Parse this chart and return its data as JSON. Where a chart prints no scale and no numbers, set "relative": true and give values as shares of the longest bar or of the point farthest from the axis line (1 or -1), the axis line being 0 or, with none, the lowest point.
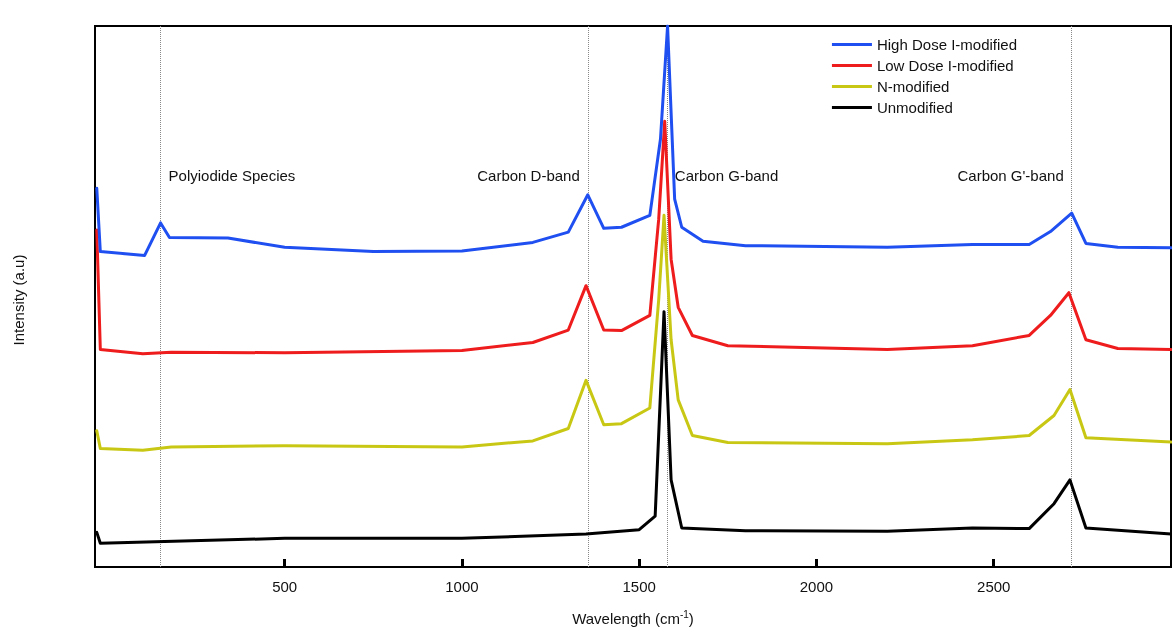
{
  "chart_data": {
    "type": "line",
    "relative": true,
    "xlabel": "Wavelength (cm$^{-1}$)",
    "ylabel": "Intensity (a.u)",
    "xlim": [
      -35,
      3000
    ],
    "xticks": [
      500,
      1000,
      1500,
      2000,
      2500
    ],
    "legend": "top right",
    "marker": "none",
    "line_style": "solid",
    "grid": false,
    "series": [
      {
        "name": "High Dose I-modified",
        "color": "#1f4ff0",
        "x": [
          -30,
          -20,
          105,
          150,
          175,
          340,
          500,
          750,
          1000,
          1200,
          1300,
          1355,
          1400,
          1450,
          1530,
          1560,
          1580,
          1600,
          1620,
          1680,
          1800,
          2200,
          2440,
          2600,
          2660,
          2720,
          2760,
          2850,
          3000
        ],
        "values": [
          0.7,
          0.583,
          0.576,
          0.636,
          0.609,
          0.608,
          0.591,
          0.583,
          0.584,
          0.6,
          0.619,
          0.688,
          0.626,
          0.628,
          0.65,
          0.791,
          1.0,
          0.68,
          0.628,
          0.602,
          0.594,
          0.591,
          0.596,
          0.596,
          0.62,
          0.654,
          0.598,
          0.591,
          0.59
        ]
      },
      {
        "name": "Low Dose I-modified",
        "color": "#ee1c1c",
        "x": [
          -30,
          -20,
          100,
          180,
          500,
          1000,
          1200,
          1300,
          1350,
          1400,
          1450,
          1530,
          1555,
          1572,
          1590,
          1610,
          1650,
          1750,
          2200,
          2440,
          2600,
          2660,
          2712,
          2760,
          2850,
          3000
        ],
        "values": [
          0.623,
          0.402,
          0.394,
          0.397,
          0.396,
          0.4,
          0.415,
          0.438,
          0.52,
          0.438,
          0.437,
          0.465,
          0.643,
          0.824,
          0.569,
          0.48,
          0.428,
          0.409,
          0.402,
          0.409,
          0.428,
          0.465,
          0.507,
          0.42,
          0.404,
          0.402
        ]
      },
      {
        "name": "N-modified",
        "color": "#c8c814",
        "x": [
          -30,
          -20,
          100,
          180,
          500,
          1000,
          1200,
          1300,
          1350,
          1400,
          1450,
          1530,
          1555,
          1570,
          1590,
          1610,
          1650,
          1750,
          2200,
          2440,
          2600,
          2670,
          2715,
          2760,
          3000
        ],
        "values": [
          0.252,
          0.219,
          0.216,
          0.222,
          0.224,
          0.222,
          0.233,
          0.256,
          0.345,
          0.263,
          0.265,
          0.294,
          0.494,
          0.65,
          0.42,
          0.309,
          0.243,
          0.23,
          0.228,
          0.235,
          0.243,
          0.28,
          0.328,
          0.239,
          0.231
        ]
      },
      {
        "name": "Unmodified",
        "color": "#000000",
        "x": [
          -30,
          -20,
          500,
          1000,
          1350,
          1500,
          1545,
          1570,
          1590,
          1620,
          1800,
          2200,
          2440,
          2600,
          2670,
          2715,
          2760,
          3000
        ],
        "values": [
          0.064,
          0.044,
          0.053,
          0.053,
          0.061,
          0.069,
          0.094,
          0.472,
          0.161,
          0.072,
          0.067,
          0.066,
          0.072,
          0.071,
          0.117,
          0.161,
          0.072,
          0.061
        ]
      }
    ],
    "ref_lines": [
      {
        "axis": "x",
        "value": 150,
        "color": "#888888",
        "line_style": "dotted",
        "label": "Polyiodide Species"
      },
      {
        "axis": "x",
        "value": 1355,
        "color": "#888888",
        "line_style": "dotted",
        "label": "Carbon D-band"
      },
      {
        "axis": "x",
        "value": 1578,
        "color": "#888888",
        "line_style": "dotted",
        "label": "Carbon G-band"
      },
      {
        "axis": "x",
        "value": 2720,
        "color": "#888888",
        "line_style": "dotted",
        "label": "Carbon G'-band"
      }
    ]
  }
}
